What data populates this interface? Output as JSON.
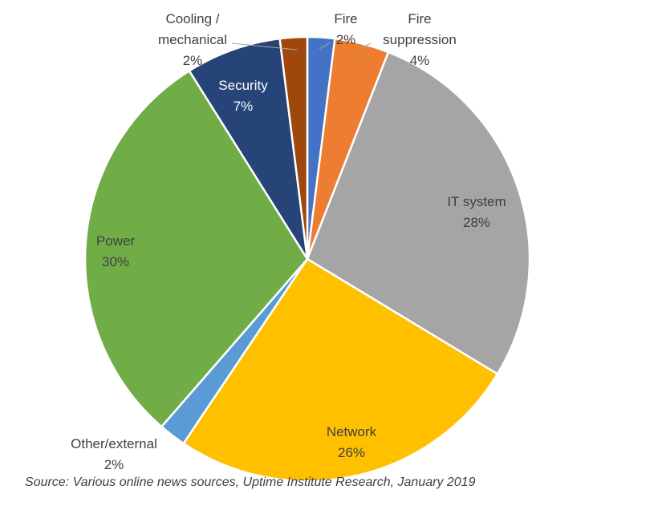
{
  "chart_data": {
    "type": "pie",
    "title": "",
    "legend": "none",
    "slices": [
      {
        "label_lines": [
          "Fire",
          "2%"
        ],
        "value": 2,
        "color": "#4472C4"
      },
      {
        "label_lines": [
          "Fire",
          "suppression",
          "4%"
        ],
        "value": 4,
        "color": "#ED7D31"
      },
      {
        "label_lines": [
          "IT system",
          "28%"
        ],
        "value": 28,
        "color": "#A5A5A5"
      },
      {
        "label_lines": [
          "Network",
          "26%"
        ],
        "value": 26,
        "color": "#FFC000"
      },
      {
        "label_lines": [
          "Other/external",
          "2%"
        ],
        "value": 2,
        "color": "#5B9BD5"
      },
      {
        "label_lines": [
          "Power",
          "30%"
        ],
        "value": 30,
        "color": "#70AD47"
      },
      {
        "label_lines": [
          "Security",
          "7%"
        ],
        "value": 7,
        "color": "#264478"
      },
      {
        "label_lines": [
          "Cooling /",
          "mechanical",
          "2%"
        ],
        "value": 2,
        "color": "#9E480E"
      }
    ]
  },
  "source_note": "Source: Various online news sources, Uptime Institute Research, January 2019"
}
